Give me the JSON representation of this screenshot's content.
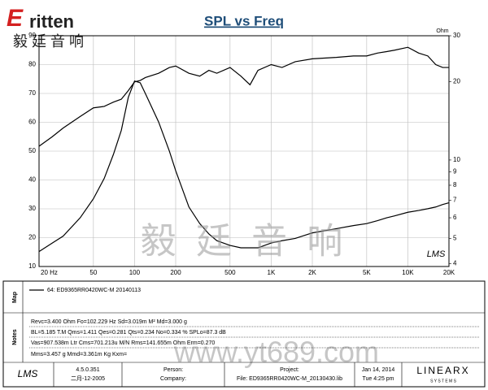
{
  "chart_data": {
    "type": "line",
    "title": "SPL vs Freq",
    "y2_label": "Ohm",
    "x": [
      20,
      25,
      30,
      40,
      50,
      60,
      70,
      80,
      90,
      100,
      110,
      120,
      150,
      180,
      200,
      250,
      300,
      350,
      400,
      500,
      600,
      700,
      800,
      1000,
      1200,
      1500,
      2000,
      3000,
      4000,
      5000,
      6000,
      7000,
      8000,
      10000,
      12000,
      14000,
      16000,
      18000,
      20000
    ],
    "series": [
      {
        "color": "#000000",
        "values": [
          51.7,
          55,
          58,
          62,
          65,
          65.5,
          67,
          68,
          71,
          74,
          74.5,
          75.5,
          77,
          79,
          79.5,
          77,
          76,
          78,
          77,
          79,
          76,
          73,
          78,
          80,
          79,
          81,
          82,
          82.5,
          83,
          83,
          84,
          84.5,
          85,
          86,
          84,
          83,
          80,
          79,
          79
        ]
      },
      {
        "color": "#000000",
        "axis": "y2",
        "values": [
          4.45,
          4.8,
          5.1,
          6.0,
          7.1,
          8.5,
          10.5,
          13,
          17.4,
          20.1,
          19.8,
          18,
          14,
          10.8,
          9.1,
          6.6,
          5.7,
          5.2,
          4.9,
          4.7,
          4.6,
          4.6,
          4.6,
          4.8,
          4.9,
          5.0,
          5.25,
          5.45,
          5.6,
          5.7,
          5.85,
          6.0,
          6.1,
          6.3,
          6.4,
          6.5,
          6.6,
          6.75,
          6.85
        ]
      }
    ],
    "xlog": true,
    "y2log": true,
    "grid": true,
    "xlim": [
      20,
      20000
    ],
    "xticks": [
      {
        "value": 20,
        "label": "20 Hz"
      },
      50,
      100,
      200,
      500,
      {
        "value": 1000,
        "label": "1K"
      },
      {
        "value": 2000,
        "label": "2K"
      },
      {
        "value": 5000,
        "label": "5K"
      },
      {
        "value": 10000,
        "label": "10K"
      },
      {
        "value": 20000,
        "label": "20K"
      }
    ],
    "ylim": [
      10,
      90
    ],
    "yticks": [
      10,
      20,
      30,
      40,
      50,
      60,
      70,
      80,
      90
    ],
    "y2lim": [
      3.9,
      30
    ],
    "y2ticks": [
      4,
      5,
      6,
      7,
      8,
      9,
      10,
      20,
      30
    ],
    "plot_logo": "LMS",
    "legend_label": "64: ED9365RR0420WC-M   20140113"
  },
  "header": {
    "brand": "ritten",
    "brand_initial": "E",
    "chinese": "毅 廷 音 响"
  },
  "watermark": [
    "毅 廷 音 响",
    "www.yt689.com"
  ],
  "panels": {
    "map": "Map",
    "notes": "Notes"
  },
  "notes": [
    "Revc=3.400 Ohm  Fo=102.229 Hz  Sd=3.019m M²  Md=3.000 g",
    "BL=5.185 T.M  Qms=1.411  Qes=0.281  Qts=0.234  No=0.334 %  SPLo=87.3 dB",
    "Vas=907.538m Ltr  Cms=701.213u M/N  Rms=141.655m Ohm  Erm=0.270",
    "Mms=3.457 g  Mmd=3.361m Kg  Kxm="
  ],
  "footer": {
    "logo": "LMS",
    "version": "4.5.0.351",
    "version_date": "二月-12-2005",
    "person": "Person:",
    "company": "Company:",
    "project": "Project:",
    "file": "File: ED9365RR0420WC-M_20130430.lib",
    "date": "Jan 14, 2014",
    "time": "Tue  4:25 pm",
    "brand": "LINEARX",
    "brand_sub": "S Y S T E M S"
  }
}
